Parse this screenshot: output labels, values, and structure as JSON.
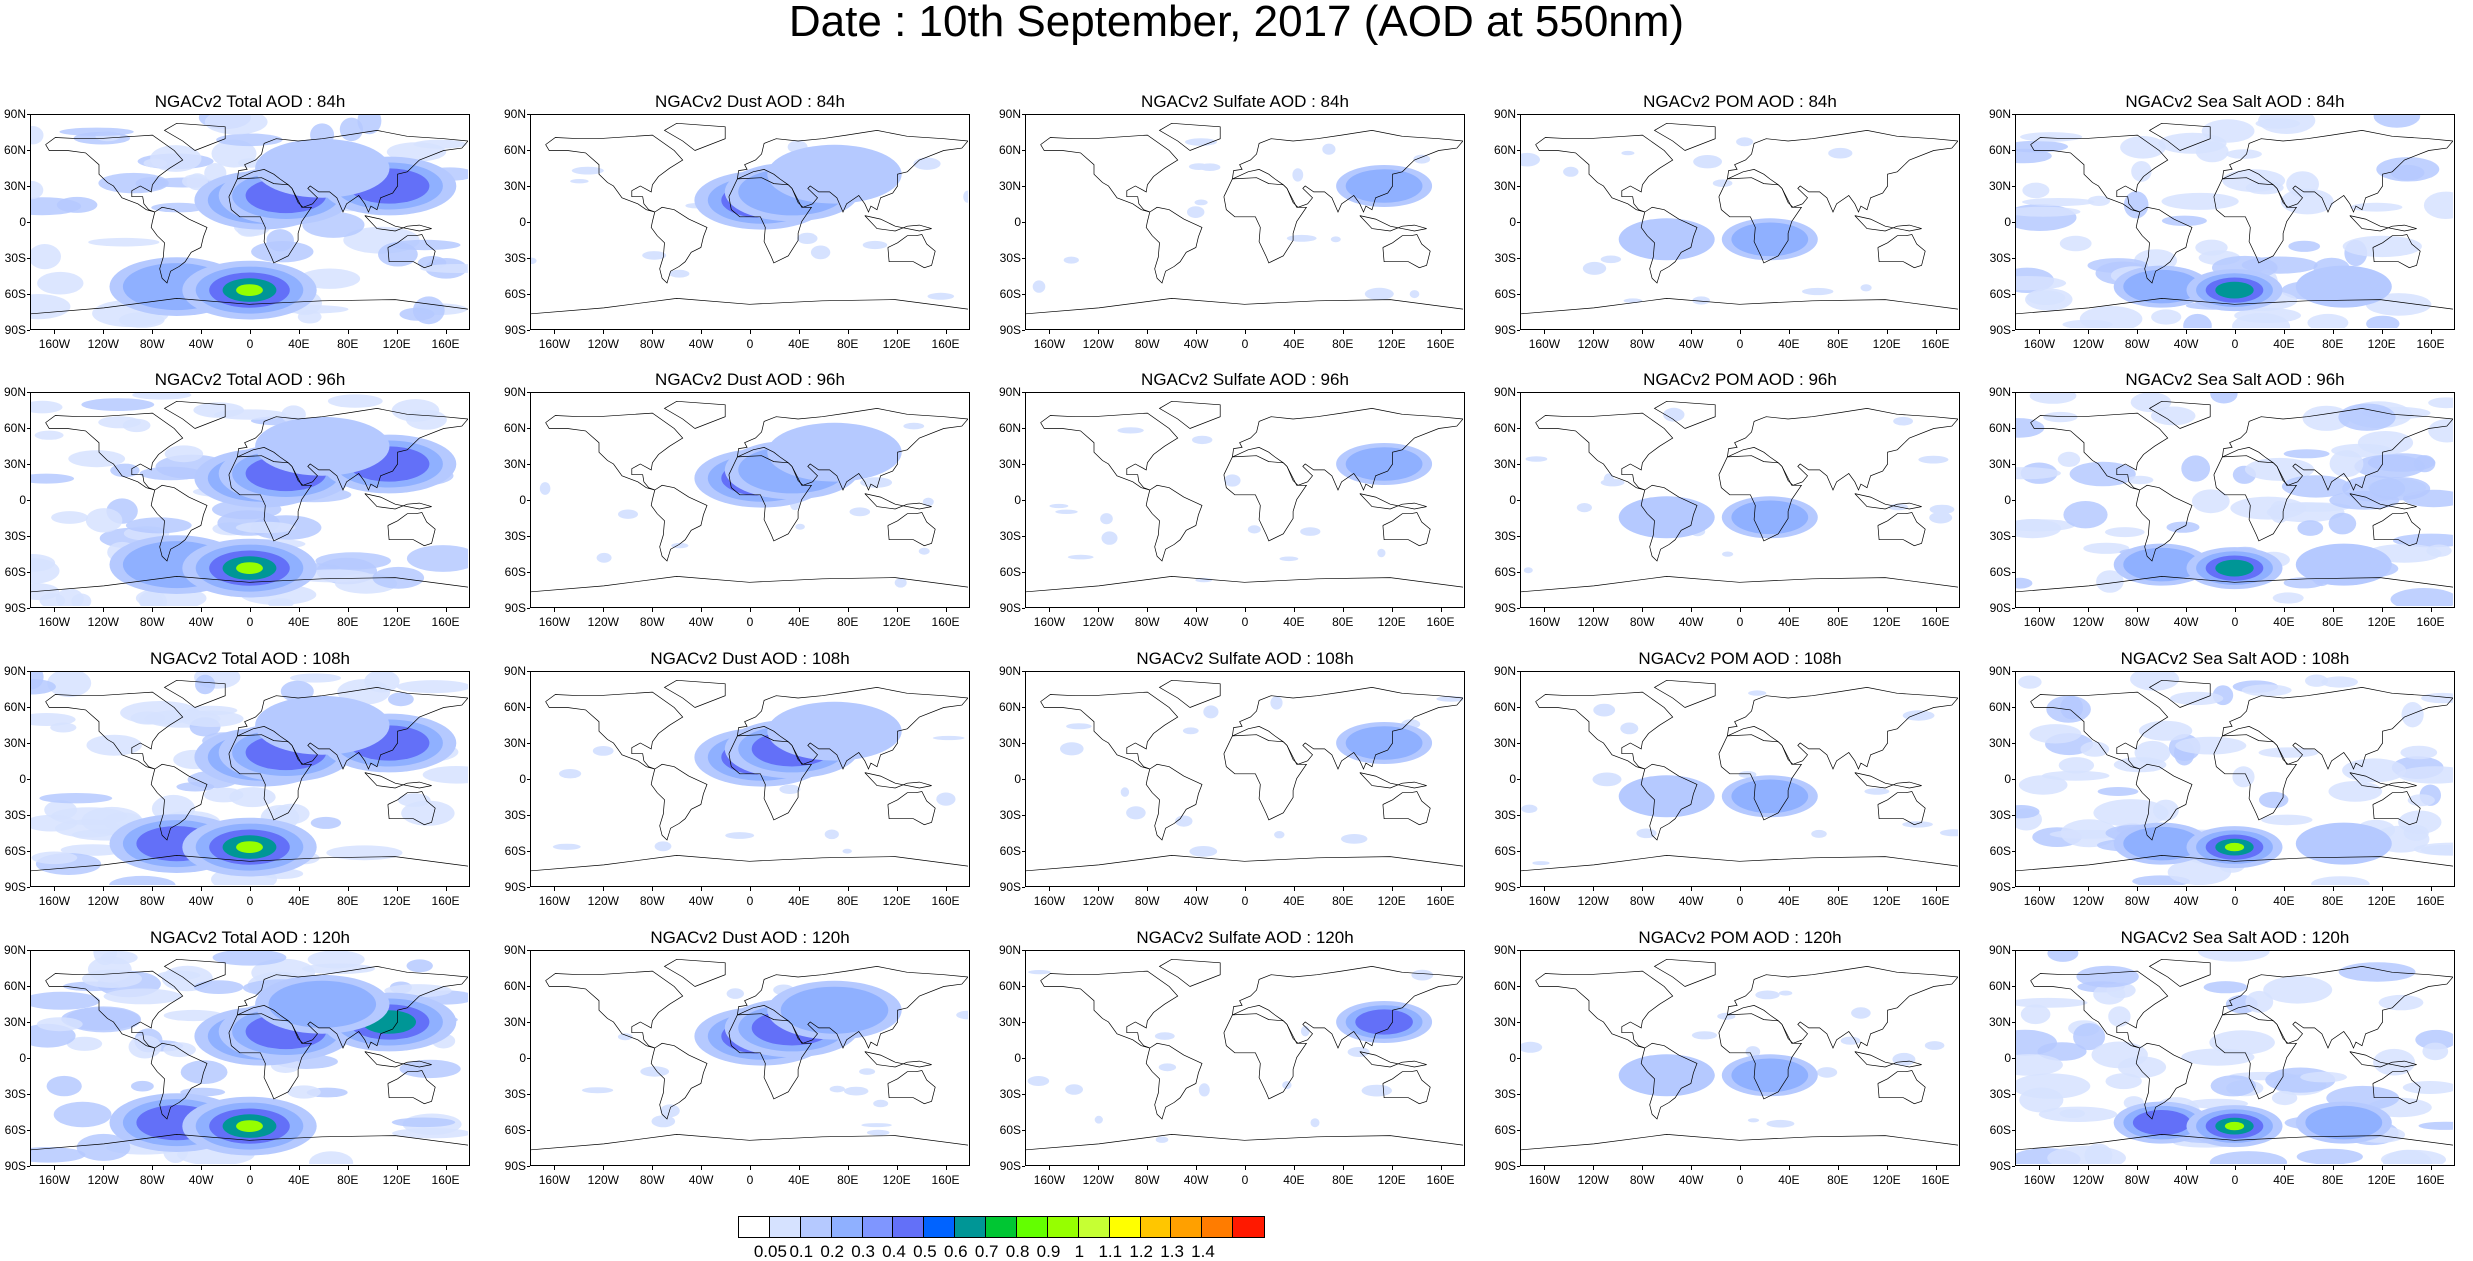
{
  "title": "Date : 10th September, 2017 (AOD at 550nm)",
  "lat_labels": [
    "90N",
    "60N",
    "30N",
    "0",
    "30S",
    "60S",
    "90S"
  ],
  "lat_values": [
    90,
    60,
    30,
    0,
    -30,
    -60,
    -90
  ],
  "lon_labels": [
    "160W",
    "120W",
    "80W",
    "40W",
    "0",
    "40E",
    "80E",
    "120E",
    "160E"
  ],
  "lon_values": [
    -160,
    -120,
    -80,
    -40,
    0,
    40,
    80,
    120,
    160
  ],
  "species": [
    "total",
    "dust",
    "sulfate",
    "pom",
    "seasalt"
  ],
  "forecast_hours": [
    "84h",
    "96h",
    "108h",
    "120h"
  ],
  "panel_titles": [
    [
      "NGACv2 Total AOD : 84h",
      "NGACv2 Dust AOD : 84h",
      "NGACv2 Sulfate AOD : 84h",
      "NGACv2 POM AOD : 84h",
      "NGACv2 Sea Salt AOD : 84h"
    ],
    [
      "NGACv2 Total AOD : 96h",
      "NGACv2 Dust AOD : 96h",
      "NGACv2 Sulfate AOD : 96h",
      "NGACv2 POM AOD : 96h",
      "NGACv2 Sea Salt AOD : 96h"
    ],
    [
      "NGACv2 Total AOD : 108h",
      "NGACv2 Dust AOD : 108h",
      "NGACv2 Sulfate AOD : 108h",
      "NGACv2 POM AOD : 108h",
      "NGACv2 Sea Salt AOD : 108h"
    ],
    [
      "NGACv2 Total AOD : 120h",
      "NGACv2 Dust AOD : 120h",
      "NGACv2 Sulfate AOD : 120h",
      "NGACv2 POM AOD : 120h",
      "NGACv2 Sea Salt  AOD : 120h"
    ]
  ],
  "colorbar": {
    "labels": [
      "0.05",
      "0.1",
      "0.2",
      "0.3",
      "0.4",
      "0.5",
      "0.6",
      "0.7",
      "0.8",
      "0.9",
      "1",
      "1.1",
      "1.2",
      "1.3",
      "1.4"
    ],
    "colors": [
      "#ffffff",
      "#d6e2ff",
      "#b5c9ff",
      "#8fb0ff",
      "#7f96ff",
      "#6370f8",
      "#0063ff",
      "#009696",
      "#00c633",
      "#63ff00",
      "#96ff00",
      "#c6ff33",
      "#ffff00",
      "#ffc600",
      "#ffa000",
      "#ff7c00",
      "#ff1900"
    ]
  },
  "aod_features": {
    "total": [
      {
        "lon": 10,
        "lat": 18,
        "level": 0.55
      },
      {
        "lon": 30,
        "lat": 22,
        "level": 0.4
      },
      {
        "lon": 115,
        "lat": 30,
        "level": 0.45
      },
      {
        "lon": -60,
        "lat": -55,
        "level": 0.35
      },
      {
        "lon": 0,
        "lat": -58,
        "level": 0.9
      },
      {
        "lon": 60,
        "lat": 45,
        "level": 0.2
      }
    ],
    "dust": [
      {
        "lon": 10,
        "lat": 18,
        "level": 0.5
      },
      {
        "lon": 35,
        "lat": 25,
        "level": 0.35
      },
      {
        "lon": 70,
        "lat": 40,
        "level": 0.2
      }
    ],
    "sulfate": [
      {
        "lon": 115,
        "lat": 30,
        "level": 0.3
      }
    ],
    "pom": [
      {
        "lon": 25,
        "lat": -15,
        "level": 0.25
      },
      {
        "lon": -60,
        "lat": -15,
        "level": 0.15
      }
    ],
    "seasalt": [
      {
        "lon": -60,
        "lat": -55,
        "level": 0.3
      },
      {
        "lon": 0,
        "lat": -58,
        "level": 0.8
      },
      {
        "lon": 90,
        "lat": -55,
        "level": 0.2
      }
    ]
  }
}
